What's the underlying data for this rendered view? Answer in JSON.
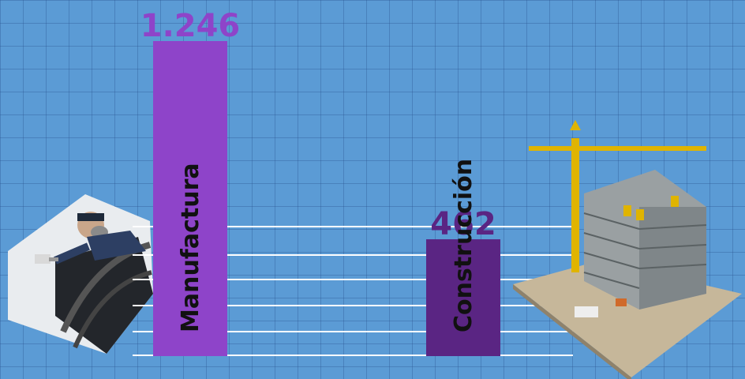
{
  "chart_data": {
    "type": "bar",
    "categories": [
      "Manufactura",
      "Construcción"
    ],
    "values": [
      1246,
      462
    ],
    "value_labels": [
      "1.246",
      "462"
    ],
    "colors": [
      "#8e44c9",
      "#5a2583"
    ],
    "label_colors": [
      "#8e44c9",
      "#5a2583"
    ],
    "ylim": [
      0,
      1246
    ],
    "grid": true
  },
  "images": {
    "left": "worker-spray-painting-car",
    "right": "building-under-construction-with-crane"
  }
}
